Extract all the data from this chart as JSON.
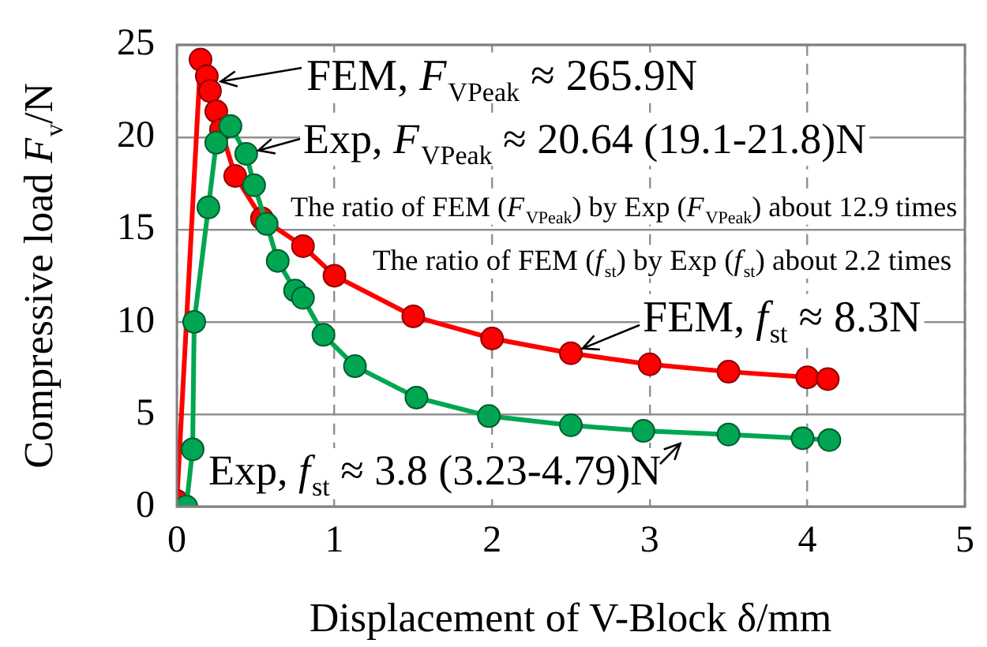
{
  "chart_data": {
    "type": "line",
    "xlabel": "Displacement of V-Block δ/mm",
    "ylabel": "Compressive load F$_{v}$/N",
    "xlim": [
      0,
      5
    ],
    "xticks": [
      0,
      1,
      2,
      3,
      4,
      5
    ],
    "ylim": [
      0,
      25
    ],
    "yticks": [
      0,
      5,
      10,
      15,
      20,
      25
    ],
    "grid": true,
    "legend": false,
    "marker": "circle",
    "series": [
      {
        "color": "#ff0000",
        "x": [
          0,
          0.15,
          0.19,
          0.21,
          0.25,
          0.28,
          0.37,
          0.54,
          0.8,
          1,
          1.5,
          2,
          2.5,
          3,
          3.5,
          4,
          4.13
        ],
        "values": [
          0.3,
          24.2,
          23.3,
          22.5,
          21.4,
          20.4,
          17.9,
          15.6,
          14.1,
          12.5,
          10.3,
          9.1,
          8.3,
          7.7,
          7.3,
          7.0,
          6.9
        ]
      },
      {
        "color": "#00a651",
        "x": [
          0.06,
          0.1,
          0.11,
          0.2,
          0.25,
          0.34,
          0.44,
          0.49,
          0.57,
          0.64,
          0.75,
          0.8,
          0.93,
          1.13,
          1.52,
          1.98,
          2.5,
          2.96,
          3.5,
          3.97,
          4.14
        ],
        "values": [
          0,
          3.1,
          10.0,
          16.2,
          19.7,
          20.6,
          19.1,
          17.4,
          15.3,
          13.3,
          11.7,
          11.3,
          9.3,
          7.6,
          5.9,
          4.9,
          4.4,
          4.1,
          3.9,
          3.7,
          3.6
        ]
      }
    ],
    "annotations": [
      {
        "text": "FEM, F$_{VPeak}$ ≈ 265.9N",
        "x": 0.2,
        "y": 22.9
      },
      {
        "text": "Exp, F$_{VPeak}$ ≈ 20.64 (19.1-21.8)N",
        "x": 0.44,
        "y": 19.1
      },
      "The ratio of FEM (F$_{VPeak}$) by Exp (F$_{VPeak}$) about 12.9 times",
      "The ratio of FEM (f$_{st}$) by Exp (f$_{st}$) about 2.2 times",
      {
        "text": "FEM, f$_{st}$ ≈ 8.3N",
        "x": 2.5,
        "y": 8.3
      },
      {
        "text": "Exp, f$_{st}$ ≈ 3.8 (3.23-4.79)N",
        "x": 3.25,
        "y": 3.9
      }
    ]
  }
}
